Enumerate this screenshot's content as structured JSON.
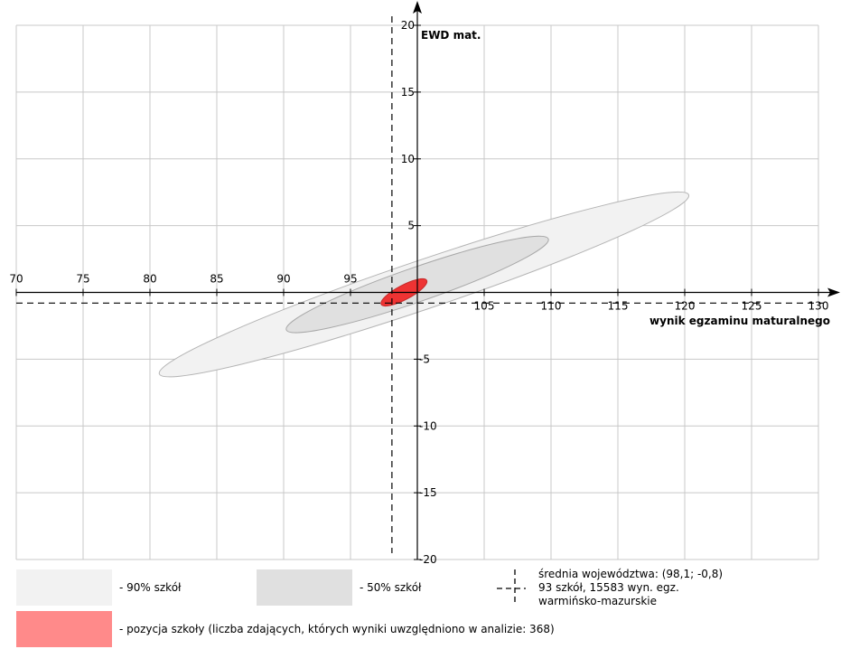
{
  "chart_data": {
    "type": "scatter",
    "x_axis": {
      "label": "wynik egzaminu maturalnego",
      "ticks": [
        "70",
        "75",
        "80",
        "85",
        "90",
        "95",
        "105",
        "110",
        "115",
        "120",
        "125",
        "130"
      ],
      "tick_values": [
        70,
        75,
        80,
        85,
        90,
        95,
        105,
        110,
        115,
        120,
        125,
        130
      ],
      "range": [
        70,
        130
      ]
    },
    "y_axis": {
      "label": "EWD mat.",
      "ticks": [
        "20",
        "15",
        "10",
        "5",
        "-5",
        "-10",
        "-15",
        "-20"
      ],
      "tick_values": [
        20,
        15,
        10,
        5,
        -5,
        -10,
        -15,
        -20
      ],
      "range": [
        -20,
        20
      ],
      "crosses_x_at": 100
    },
    "grid": true,
    "regions": [
      {
        "name": "90% szkół",
        "center": [
          100.5,
          0.6
        ],
        "from": [
          80.2,
          -6.6
        ],
        "to": [
          119.8,
          6.8
        ],
        "color": "#f2f2f2",
        "stroke": "#b4b4b4"
      },
      {
        "name": "50% szkół",
        "center": [
          100.0,
          0.6
        ],
        "from": [
          90.2,
          -3.3
        ],
        "to": [
          109.8,
          3.5
        ],
        "color": "#e0e0e0",
        "stroke": "#a8a8a8"
      },
      {
        "name": "pozycja szkoły",
        "center": [
          99.0,
          0.0
        ],
        "from": [
          97.3,
          -0.9
        ],
        "to": [
          100.7,
          0.9
        ],
        "color": "#ee3333",
        "stroke": "#c42a2a"
      }
    ],
    "mean": {
      "x": 98.1,
      "y": -0.8
    }
  },
  "legend": {
    "p90_label": "- 90% szkół",
    "p50_label": "- 50% szkół",
    "mean_lines": [
      "średnia województwa: (98,1; -0,8)",
      "93 szkół, 15583 wyn. egz.",
      "warmińsko-mazurskie"
    ],
    "school_label": "- pozycja szkoły (liczba zdających, których wyniki uwzględniono w analizie: 368)",
    "colors": {
      "p90": "#f2f2f2",
      "p50": "#e0e0e0",
      "school": "#ff8a8a"
    }
  }
}
